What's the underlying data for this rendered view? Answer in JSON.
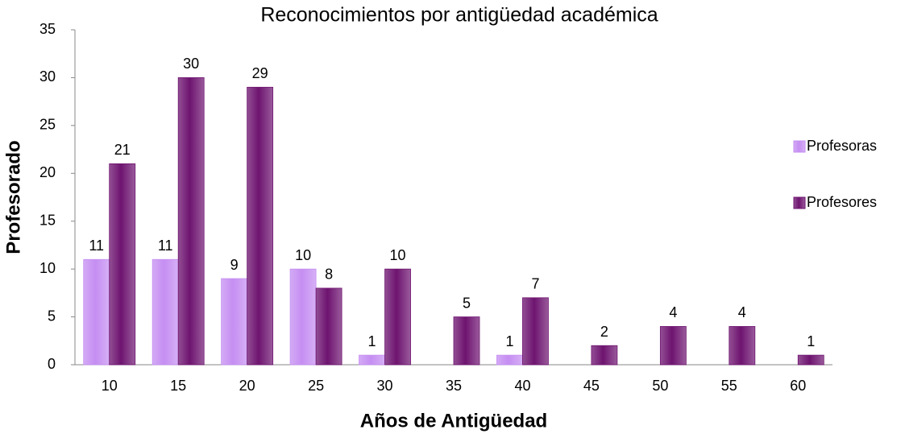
{
  "chart_data": {
    "type": "bar",
    "title": "Reconocimientos por antigüedad académica",
    "xlabel": "Años de Antigüedad",
    "ylabel": "Profesorado",
    "categories": [
      "10",
      "15",
      "20",
      "25",
      "30",
      "35",
      "40",
      "45",
      "50",
      "55",
      "60"
    ],
    "series": [
      {
        "name": "Profesoras",
        "color": "#c58ef2",
        "values": [
          11,
          11,
          9,
          10,
          1,
          null,
          1,
          null,
          null,
          null,
          null
        ]
      },
      {
        "name": "Profesores",
        "color": "#6e1470",
        "values": [
          21,
          30,
          29,
          8,
          10,
          5,
          7,
          2,
          4,
          4,
          1
        ]
      }
    ],
    "ylim": [
      0,
      35
    ],
    "yticks": [
      0,
      5,
      10,
      15,
      20,
      25,
      30,
      35
    ],
    "legend": "right"
  }
}
